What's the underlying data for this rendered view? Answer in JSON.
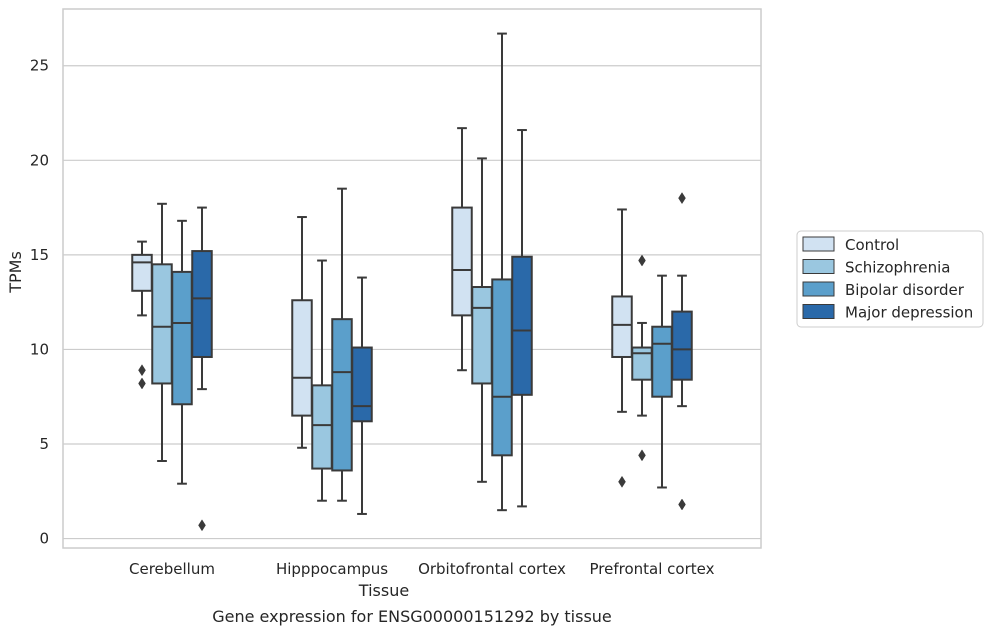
{
  "chart_data": {
    "type": "box",
    "title": "",
    "caption": "Gene expression for ENSG00000151292 by tissue",
    "xlabel": "Tissue",
    "ylabel": "TPMs",
    "ylim": [
      -0.5,
      28
    ],
    "yticks": [
      0,
      5,
      10,
      15,
      20,
      25
    ],
    "grid": "horizontal",
    "legend_position": "right",
    "categories": [
      "Cerebellum",
      "Hipppocampus",
      "Orbitofrontal cortex",
      "Prefrontal cortex"
    ],
    "series": [
      {
        "name": "Control",
        "color": "#d1e2f2",
        "boxes": [
          {
            "whisker_low": 11.8,
            "q1": 13.1,
            "median": 14.6,
            "q3": 15.0,
            "whisker_high": 15.7,
            "outliers": [
              8.9,
              8.2
            ]
          },
          {
            "whisker_low": 4.8,
            "q1": 6.5,
            "median": 8.5,
            "q3": 12.6,
            "whisker_high": 17.0,
            "outliers": []
          },
          {
            "whisker_low": 8.9,
            "q1": 11.8,
            "median": 14.2,
            "q3": 17.5,
            "whisker_high": 21.7,
            "outliers": []
          },
          {
            "whisker_low": 6.7,
            "q1": 9.6,
            "median": 11.3,
            "q3": 12.8,
            "whisker_high": 17.4,
            "outliers": [
              3.0
            ]
          }
        ]
      },
      {
        "name": "Schizophrenia",
        "color": "#9ac7e0",
        "boxes": [
          {
            "whisker_low": 4.1,
            "q1": 8.2,
            "median": 11.2,
            "q3": 14.5,
            "whisker_high": 17.7,
            "outliers": []
          },
          {
            "whisker_low": 2.0,
            "q1": 3.7,
            "median": 6.0,
            "q3": 8.1,
            "whisker_high": 14.7,
            "outliers": []
          },
          {
            "whisker_low": 3.0,
            "q1": 8.2,
            "median": 12.2,
            "q3": 13.3,
            "whisker_high": 20.1,
            "outliers": []
          },
          {
            "whisker_low": 6.5,
            "q1": 8.4,
            "median": 9.8,
            "q3": 10.1,
            "whisker_high": 11.4,
            "outliers": [
              14.7,
              4.4
            ]
          }
        ]
      },
      {
        "name": "Bipolar disorder",
        "color": "#5b9fcb",
        "boxes": [
          {
            "whisker_low": 2.9,
            "q1": 7.1,
            "median": 11.4,
            "q3": 14.1,
            "whisker_high": 16.8,
            "outliers": []
          },
          {
            "whisker_low": 2.0,
            "q1": 3.6,
            "median": 8.8,
            "q3": 11.6,
            "whisker_high": 18.5,
            "outliers": []
          },
          {
            "whisker_low": 1.5,
            "q1": 4.4,
            "median": 7.5,
            "q3": 13.7,
            "whisker_high": 26.7,
            "outliers": []
          },
          {
            "whisker_low": 2.7,
            "q1": 7.5,
            "median": 10.3,
            "q3": 11.2,
            "whisker_high": 13.9,
            "outliers": []
          }
        ]
      },
      {
        "name": "Major depression",
        "color": "#2a69a9",
        "boxes": [
          {
            "whisker_low": 7.9,
            "q1": 9.6,
            "median": 12.7,
            "q3": 15.2,
            "whisker_high": 17.5,
            "outliers": [
              0.7
            ]
          },
          {
            "whisker_low": 1.3,
            "q1": 6.2,
            "median": 7.0,
            "q3": 10.1,
            "whisker_high": 13.8,
            "outliers": []
          },
          {
            "whisker_low": 1.7,
            "q1": 7.6,
            "median": 11.0,
            "q3": 14.9,
            "whisker_high": 21.6,
            "outliers": []
          },
          {
            "whisker_low": 7.0,
            "q1": 8.4,
            "median": 10.0,
            "q3": 12.0,
            "whisker_high": 13.9,
            "outliers": [
              18.0,
              1.8
            ]
          }
        ]
      }
    ]
  },
  "colors": {
    "grid": "#cccccc",
    "frame": "#cccccc",
    "box_edge": "#3a3a3a",
    "text": "#262626"
  }
}
